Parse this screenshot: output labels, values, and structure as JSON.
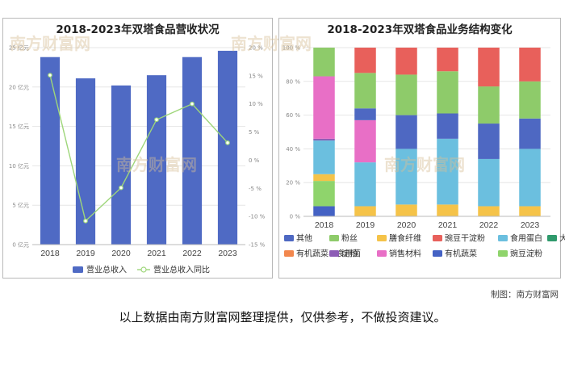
{
  "watermark": "南方财富网",
  "credit": "制图：南方财富网",
  "disclaimer": "以上数据由南方财富网整理提供，仅供参考，不做投资建议。",
  "chart_data": [
    {
      "type": "bar+line",
      "title": "2018-2023年双塔食品营收状况",
      "categories": [
        "2018",
        "2019",
        "2020",
        "2021",
        "2022",
        "2023"
      ],
      "series": [
        {
          "name": "营业总收入",
          "kind": "bar",
          "axis": "left",
          "color": "#4f6ac4",
          "values": [
            23.8,
            21.1,
            20.2,
            21.5,
            23.8,
            24.6
          ]
        },
        {
          "name": "营业总收入同比",
          "kind": "line",
          "axis": "right",
          "color": "#9ed67a",
          "values": [
            15.1,
            -10.8,
            -4.9,
            7.2,
            10.0,
            3.1
          ]
        }
      ],
      "y_left": {
        "min": 0,
        "max": 25,
        "step": 5,
        "unit": "亿元",
        "ticks": [
          "0 亿元",
          "5 亿元",
          "10 亿元",
          "15 亿元",
          "20 亿元",
          "25 亿元"
        ]
      },
      "y_right": {
        "min": -15,
        "max": 20,
        "step": 5,
        "ticks": [
          "-15 %",
          "-10 %",
          "-5 %",
          "0 %",
          "5 %",
          "10 %",
          "15 %",
          "20 %"
        ]
      },
      "legend_position": "bottom"
    },
    {
      "type": "stacked-bar-100",
      "title": "2018-2023年双塔食品业务结构变化",
      "categories": [
        "2018",
        "2019",
        "2020",
        "2021",
        "2022",
        "2023"
      ],
      "y_ticks": [
        "0 %",
        "20 %",
        "40 %",
        "60 %",
        "80 %",
        "100 %"
      ],
      "series": [
        {
          "name": "其他",
          "color": "#4e68c2",
          "values": [
            null,
            7,
            20,
            15,
            21,
            18
          ]
        },
        {
          "name": "粉丝",
          "color": "#8ecb6a",
          "values": [
            17,
            21,
            24,
            25,
            22,
            22
          ]
        },
        {
          "name": "膳食纤维",
          "color": "#f5c349",
          "values": [
            4,
            6,
            7,
            7,
            6,
            6
          ]
        },
        {
          "name": "豌豆干淀粉",
          "color": "#e8605b",
          "values": [
            null,
            15,
            16,
            14,
            23,
            20
          ]
        },
        {
          "name": "食用蛋白",
          "color": "#6bbfdf",
          "values": [
            20,
            26,
            33,
            39,
            28,
            34
          ]
        },
        {
          "name": "大粉",
          "color": "#2f9a6c",
          "values": [
            null,
            null,
            null,
            null,
            null,
            null
          ]
        },
        {
          "name": "有机蔬菜、食用菌",
          "color": "#f2874d",
          "values": [
            null,
            null,
            null,
            null,
            null,
            null
          ]
        },
        {
          "name": "淀粉",
          "color": "#8c5cb5",
          "values": [
            1,
            null,
            null,
            null,
            null,
            null
          ]
        },
        {
          "name": "销售材料",
          "color": "#e86fc6",
          "values": [
            37,
            25,
            null,
            null,
            null,
            null
          ]
        },
        {
          "name": "有机蔬菜",
          "color": "#4462c4",
          "values": [
            6,
            null,
            null,
            null,
            null,
            null
          ]
        },
        {
          "name": "豌豆淀粉",
          "color": "#8fd46c",
          "values": [
            15,
            null,
            null,
            null,
            null,
            null
          ]
        }
      ],
      "stack_order_bottom_to_top": [
        "有机蔬菜",
        "豌豆淀粉",
        "膳食纤维",
        "食用蛋白",
        "淀粉",
        "销售材料",
        "其他",
        "粉丝",
        "豌豆干淀粉"
      ],
      "legend_rows": [
        [
          "其他",
          "粉丝",
          "膳食纤维",
          "豌豆干淀粉",
          "食用蛋白",
          "大粉"
        ],
        [
          "有机蔬菜、食用菌",
          "淀粉",
          "销售材料",
          "有机蔬菜",
          "豌豆淀粉"
        ]
      ],
      "legend_position": "bottom"
    }
  ]
}
